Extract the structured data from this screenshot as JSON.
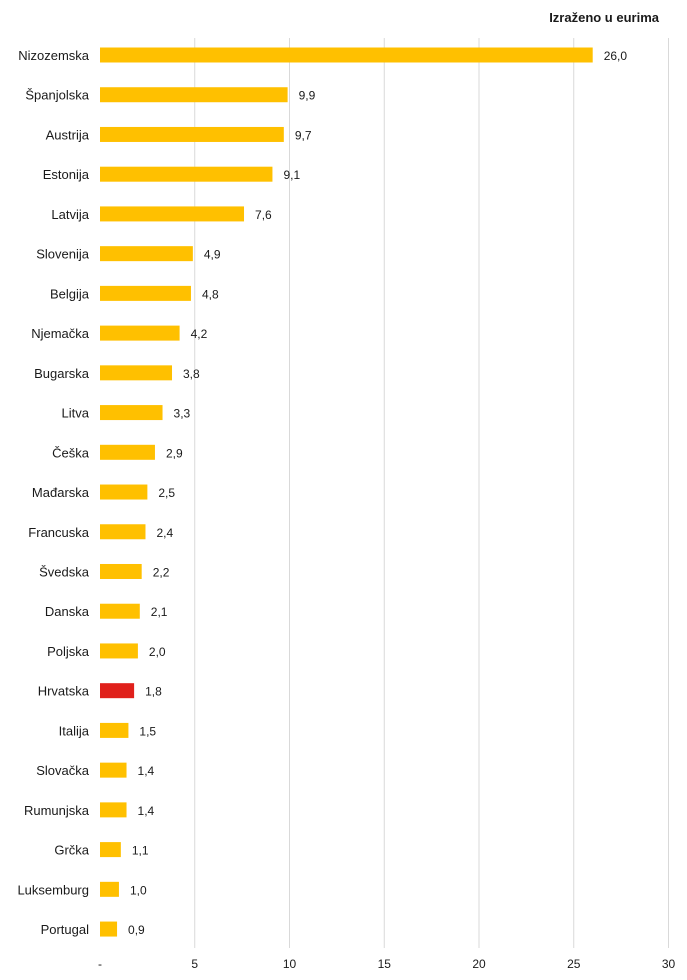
{
  "chart_data": {
    "type": "bar",
    "orientation": "horizontal",
    "unit_note": "Izraženo u eurima",
    "categories": [
      "Nizozemska",
      "Španjolska",
      "Austrija",
      "Estonija",
      "Latvija",
      "Slovenija",
      "Belgija",
      "Njemačka",
      "Bugarska",
      "Litva",
      "Češka",
      "Mađarska",
      "Francuska",
      "Švedska",
      "Danska",
      "Poljska",
      "Hrvatska",
      "Italija",
      "Slovačka",
      "Rumunjska",
      "Grčka",
      "Luksemburg",
      "Portugal"
    ],
    "values": [
      26.0,
      9.9,
      9.7,
      9.1,
      7.6,
      4.9,
      4.8,
      4.2,
      3.8,
      3.3,
      2.9,
      2.5,
      2.4,
      2.2,
      2.1,
      2.0,
      1.8,
      1.5,
      1.4,
      1.4,
      1.1,
      1.0,
      0.9
    ],
    "value_labels": [
      "26,0",
      "9,9",
      "9,7",
      "9,1",
      "7,6",
      "4,9",
      "4,8",
      "4,2",
      "3,8",
      "3,3",
      "2,9",
      "2,5",
      "2,4",
      "2,2",
      "2,1",
      "2,0",
      "1,8",
      "1,5",
      "1,4",
      "1,4",
      "1,1",
      "1,0",
      "0,9"
    ],
    "highlight": "Hrvatska",
    "xlim": [
      0,
      30
    ],
    "x_ticks": [
      0,
      5,
      10,
      15,
      20,
      25,
      30
    ],
    "x_tick_labels": [
      "-",
      "5",
      "10",
      "15",
      "20",
      "25",
      "30"
    ],
    "grid": "vertical",
    "colors": {
      "bar": "#FFC000",
      "highlight": "#E0201B",
      "grid": "#D9D9D9"
    }
  }
}
